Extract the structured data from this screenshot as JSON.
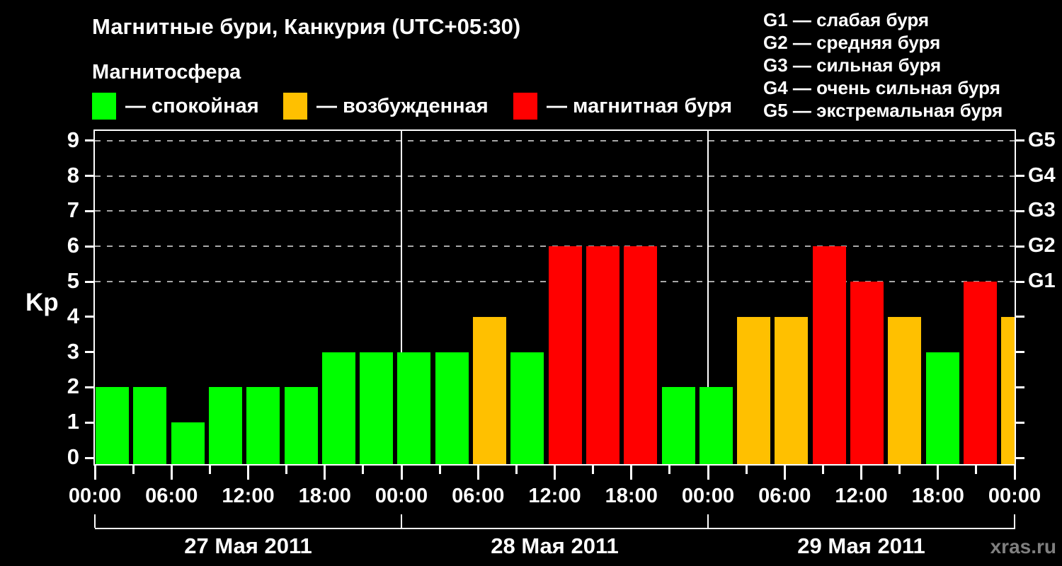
{
  "title": "Магнитные бури, Канкурия (UTC+05:30)",
  "watermark": "xras.ru",
  "storm_scale": {
    "items": [
      "G1 — слабая буря",
      "G2 — средняя буря",
      "G3 — сильная буря",
      "G4 — очень сильная буря",
      "G5 — экстремальная буря"
    ]
  },
  "legend": {
    "heading": "Магнитосфера",
    "items": [
      {
        "key": "quiet",
        "label": "— спокойная",
        "color": "#00FF00"
      },
      {
        "key": "excited",
        "label": "— возбужденная",
        "color": "#FFC000"
      },
      {
        "key": "storm",
        "label": "— магнитная буря",
        "color": "#FF0000"
      }
    ]
  },
  "chart_data": {
    "type": "bar",
    "title": "Магнитные бури, Канкурия (UTC+05:30)",
    "xlabel": "",
    "ylabel": "Kp",
    "ylim": [
      0,
      9.5
    ],
    "x_range_hours": [
      0,
      72
    ],
    "bar_interval_hours": 3,
    "grid": "dashed horizontal at Kp 5-9",
    "gridlines_at": [
      5,
      6,
      7,
      8,
      9
    ],
    "y_ticks": [
      0,
      1,
      2,
      3,
      4,
      5,
      6,
      7,
      8,
      9
    ],
    "right_axis_labels": [
      {
        "kp": 5,
        "label": "G1"
      },
      {
        "kp": 6,
        "label": "G2"
      },
      {
        "kp": 7,
        "label": "G3"
      },
      {
        "kp": 8,
        "label": "G4"
      },
      {
        "kp": 9,
        "label": "G5"
      }
    ],
    "x_tick_labels": [
      "00:00",
      "06:00",
      "12:00",
      "18:00",
      "00:00",
      "06:00",
      "12:00",
      "18:00",
      "00:00",
      "06:00",
      "12:00",
      "18:00",
      "00:00"
    ],
    "x_major_tick_step_hours": 6,
    "x_minor_tick_step_hours": 3,
    "day_boundaries_hours": [
      24,
      48
    ],
    "days": [
      {
        "label": "27 Мая 2011",
        "start_hour": 0,
        "end_hour": 24
      },
      {
        "label": "28 Мая 2011",
        "start_hour": 24,
        "end_hour": 48
      },
      {
        "label": "29 Мая 2011",
        "start_hour": 48,
        "end_hour": 72
      }
    ],
    "colors": {
      "quiet": "#00FF00",
      "excited": "#FFC000",
      "storm": "#FF0000"
    },
    "bars": [
      {
        "start_hour": 0,
        "kp": 2,
        "state": "quiet"
      },
      {
        "start_hour": 3,
        "kp": 2,
        "state": "quiet"
      },
      {
        "start_hour": 6,
        "kp": 1,
        "state": "quiet"
      },
      {
        "start_hour": 9,
        "kp": 2,
        "state": "quiet"
      },
      {
        "start_hour": 12,
        "kp": 2,
        "state": "quiet"
      },
      {
        "start_hour": 15,
        "kp": 2,
        "state": "quiet"
      },
      {
        "start_hour": 18,
        "kp": 3,
        "state": "quiet"
      },
      {
        "start_hour": 21,
        "kp": 3,
        "state": "quiet"
      },
      {
        "start_hour": 24,
        "kp": 3,
        "state": "quiet"
      },
      {
        "start_hour": 27,
        "kp": 3,
        "state": "quiet"
      },
      {
        "start_hour": 30,
        "kp": 4,
        "state": "excited"
      },
      {
        "start_hour": 33,
        "kp": 3,
        "state": "quiet"
      },
      {
        "start_hour": 36,
        "kp": 6,
        "state": "storm"
      },
      {
        "start_hour": 39,
        "kp": 6,
        "state": "storm"
      },
      {
        "start_hour": 42,
        "kp": 6,
        "state": "storm"
      },
      {
        "start_hour": 45,
        "kp": 2,
        "state": "quiet"
      },
      {
        "start_hour": 48,
        "kp": 2,
        "state": "quiet"
      },
      {
        "start_hour": 51,
        "kp": 4,
        "state": "excited"
      },
      {
        "start_hour": 54,
        "kp": 4,
        "state": "excited"
      },
      {
        "start_hour": 57,
        "kp": 6,
        "state": "storm"
      },
      {
        "start_hour": 60,
        "kp": 5,
        "state": "storm"
      },
      {
        "start_hour": 63,
        "kp": 4,
        "state": "excited"
      },
      {
        "start_hour": 66,
        "kp": 3,
        "state": "quiet"
      },
      {
        "start_hour": 69,
        "kp": 5,
        "state": "storm"
      },
      {
        "start_hour": 72,
        "kp": 4,
        "state": "excited",
        "clipped": true
      }
    ]
  }
}
